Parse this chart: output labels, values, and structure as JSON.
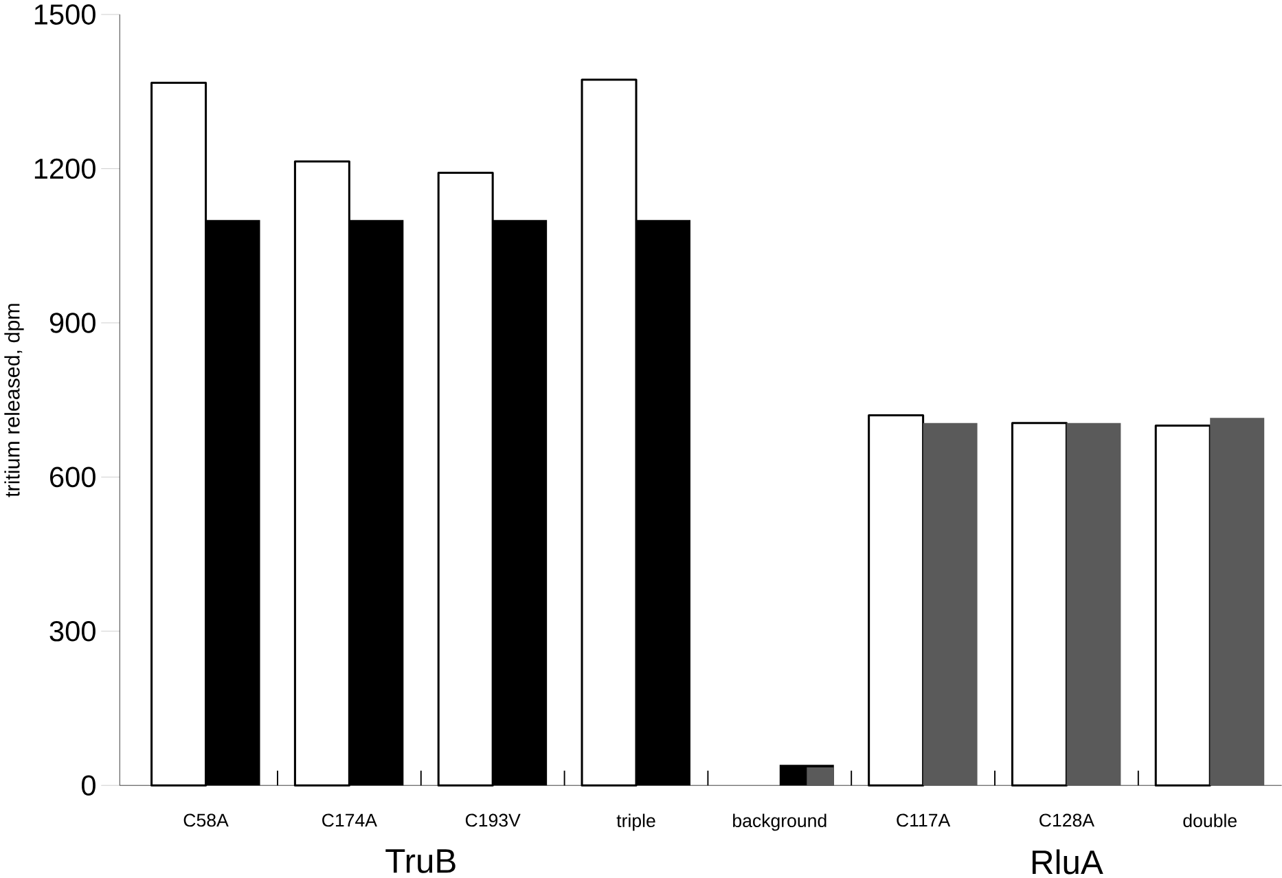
{
  "chart_data": {
    "type": "bar",
    "ylabel": "tritium released, dpm",
    "categories": [
      "C58A",
      "C174A",
      "C193V",
      "triple",
      "background",
      "C117A",
      "C128A",
      "double"
    ],
    "series": [
      {
        "color": "#ffffff",
        "values": [
          1367,
          1214,
          1192,
          1373,
          null,
          720,
          705,
          700
        ]
      },
      {
        "color": "#000000",
        "colors": [
          "#000000",
          "#000000",
          "#000000",
          "#000000",
          "#000000",
          "#5a5a5a",
          "#5a5a5a",
          "#5a5a5a"
        ],
        "values": [
          1100,
          1100,
          1100,
          1100,
          40,
          705,
          705,
          715
        ]
      },
      {
        "color": "#5a5a5a",
        "values": [
          null,
          null,
          null,
          null,
          35,
          null,
          null,
          null
        ]
      }
    ],
    "ylim": [
      0,
      1500
    ],
    "yticks": [
      0,
      300,
      600,
      900,
      1200,
      1500
    ],
    "annotations": [
      "TruB",
      "RluA"
    ],
    "grid": false
  }
}
